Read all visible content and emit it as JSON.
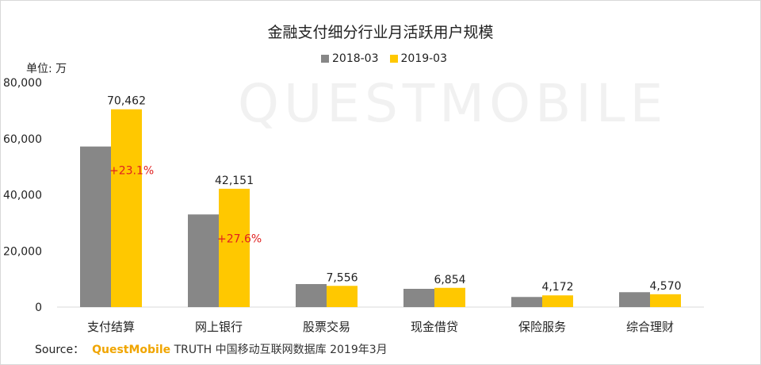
{
  "watermark": "QUESTMOBILE",
  "source": {
    "label": "Source：",
    "brand": "QuestMobile",
    "rest": " TRUTH 中国移动互联网数据库 2019年3月"
  },
  "colors": {
    "series1": "#878787",
    "series2": "#ffc800",
    "growth": "#e02020",
    "axis": "#d9d9d9"
  },
  "chart_data": {
    "type": "bar",
    "title": "金融支付细分行业月活跃用户规模",
    "ylabel": "单位: 万",
    "xlabel": "",
    "ylim": [
      0,
      80000
    ],
    "yticks": [
      "0",
      "20,000",
      "40,000",
      "60,000",
      "80,000"
    ],
    "categories": [
      "支付结算",
      "网上银行",
      "股票交易",
      "现金借贷",
      "保险服务",
      "综合理财"
    ],
    "series": [
      {
        "name": "2018-03",
        "values": [
          57200,
          33000,
          8200,
          6500,
          3600,
          5300
        ]
      },
      {
        "name": "2019-03",
        "values": [
          70462,
          42151,
          7556,
          6854,
          4172,
          4570
        ],
        "labels": [
          "70,462",
          "42,151",
          "7,556",
          "6,854",
          "4,172",
          "4,570"
        ]
      }
    ],
    "annotations": [
      "+23.1%",
      "+27.6%"
    ],
    "legend_position": "top-center"
  }
}
